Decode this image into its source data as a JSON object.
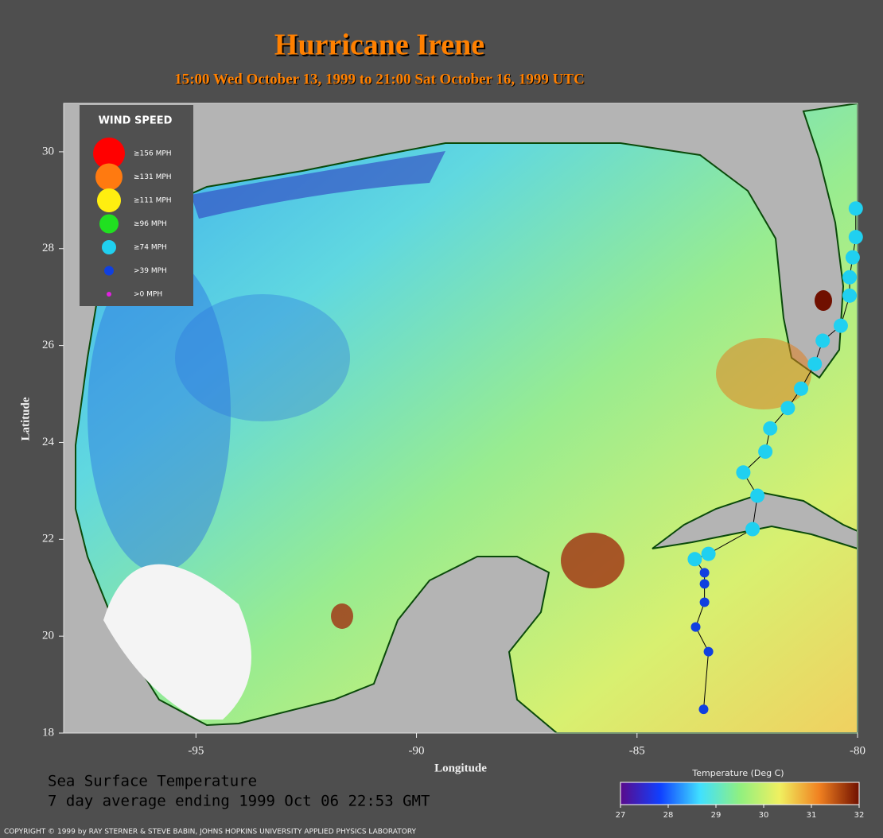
{
  "chart_data": {
    "type": "map",
    "title": "Hurricane Irene",
    "subtitle": "15:00 Wed October 13, 1999 to 21:00 Sat October 16, 1999  UTC",
    "xlabel": "Longitude",
    "ylabel": "Latitude",
    "xlim": [
      -98,
      -80
    ],
    "ylim": [
      18,
      31
    ],
    "xticks": [
      -95,
      -90,
      -85,
      -80
    ],
    "yticks": [
      18,
      20,
      22,
      24,
      26,
      28,
      30
    ],
    "legend": {
      "title": "WIND SPEED"
    },
    "series": [
      {
        "name": "≥156 MPH",
        "color": "#ff0000",
        "x": [],
        "y": []
      },
      {
        "name": "≥131 MPH",
        "color": "#ff7a10",
        "x": [],
        "y": []
      },
      {
        "name": "≥111 MPH",
        "color": "#ffee10",
        "x": [],
        "y": []
      },
      {
        "name": "≥96 MPH",
        "color": "#20e020",
        "x": [],
        "y": []
      },
      {
        "name": "≥74 MPH",
        "color": "#20d0f0",
        "x": [
          -83.69,
          -83.38,
          -82.38,
          -82.27,
          -82.59,
          -82.09,
          -81.98,
          -81.58,
          -81.28,
          -80.97,
          -80.79,
          -80.38,
          -80.18,
          -80.18,
          -80.11,
          -80.04,
          -80.04
        ],
        "y": [
          21.59,
          21.7,
          22.21,
          22.9,
          23.38,
          23.81,
          24.29,
          24.71,
          25.11,
          25.62,
          26.1,
          26.41,
          27.03,
          27.41,
          27.82,
          28.24,
          28.83
        ]
      },
      {
        "name": ">39 MPH",
        "color": "#1040e0",
        "x": [
          -83.49,
          -83.38,
          -83.67,
          -83.47,
          -83.47,
          -83.47
        ],
        "y": [
          18.49,
          19.68,
          20.19,
          20.7,
          21.08,
          21.31
        ]
      },
      {
        "name": ">0 MPH",
        "color": "#e020e0",
        "x": [],
        "y": []
      }
    ],
    "track": {
      "color": "#000000",
      "x": [
        -83.49,
        -83.38,
        -83.67,
        -83.47,
        -83.47,
        -83.47,
        -83.69,
        -83.38,
        -82.38,
        -82.27,
        -82.59,
        -82.09,
        -81.98,
        -81.58,
        -81.28,
        -80.97,
        -80.79,
        -80.38,
        -80.18,
        -80.18,
        -80.11,
        -80.04,
        -80.04
      ],
      "y": [
        18.49,
        19.68,
        20.19,
        20.7,
        21.08,
        21.31,
        21.59,
        21.7,
        22.21,
        22.9,
        23.38,
        23.81,
        24.29,
        24.71,
        25.11,
        25.62,
        26.1,
        26.41,
        27.03,
        27.41,
        27.82,
        28.24,
        28.83
      ]
    },
    "caption": [
      "Sea Surface Temperature",
      "7 day average ending 1999 Oct 06 22:53 GMT"
    ],
    "colorbar": {
      "title": "Temperature (Deg C)",
      "lim": [
        27,
        32
      ],
      "ticks": [
        27,
        28,
        29,
        30,
        31,
        32
      ],
      "colors": [
        "#5a0a8a",
        "#1040ff",
        "#40e0ff",
        "#90f080",
        "#f0f060",
        "#f08020",
        "#701000"
      ]
    },
    "copyright": "COPYRIGHT © 1999 by RAY STERNER & STEVE BABIN, JOHNS HOPKINS UNIVERSITY APPLIED PHYSICS LABORATORY"
  }
}
